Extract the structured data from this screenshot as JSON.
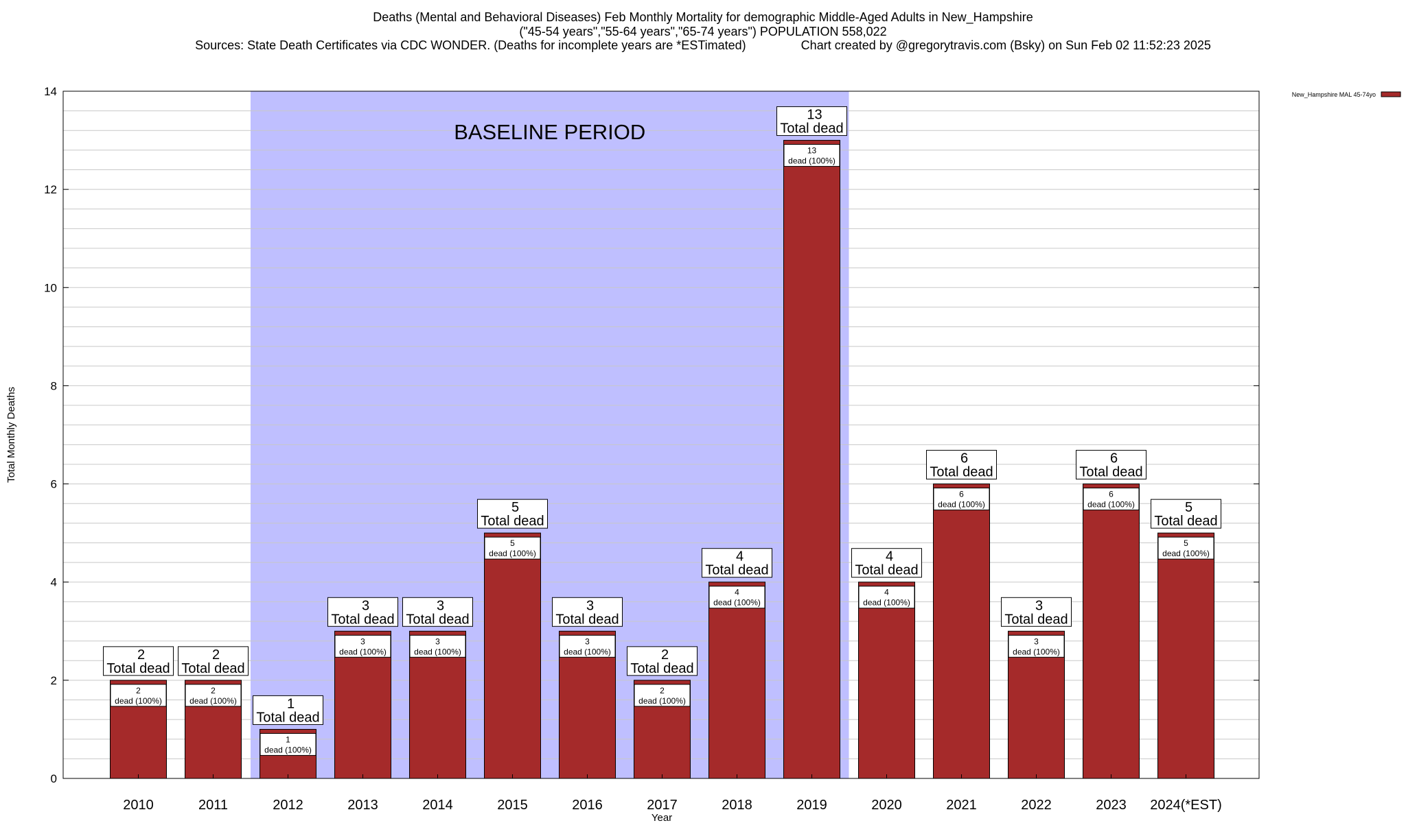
{
  "title_lines": [
    "Deaths (Mental and Behavioral Diseases) Feb Monthly Mortality for demographic Middle-Aged Adults in New_Hampshire",
    "(\"45-54 years\",\"55-64 years\",\"65-74 years\") POPULATION 558,022",
    "Sources: State Death Certificates via CDC WONDER. (Deaths for incomplete years are *ESTimated)                Chart created by @gregorytravis.com (Bsky) on Sun Feb 02 11:52:23 2025"
  ],
  "colors": {
    "bar": "#a52a2a",
    "baseline_shade": "#bfbfff",
    "grid": "#c8c8c8"
  },
  "chart_data": {
    "type": "bar",
    "xlabel": "Year",
    "ylabel": "Total Monthly Deaths",
    "ylim": [
      0,
      14
    ],
    "y_ticks": [
      0,
      2,
      4,
      6,
      8,
      10,
      12,
      14
    ],
    "grid": true,
    "legend_position": "top-right",
    "categories": [
      "2010",
      "2011",
      "2012",
      "2013",
      "2014",
      "2015",
      "2016",
      "2017",
      "2018",
      "2019",
      "2020",
      "2021",
      "2022",
      "2023",
      "2024(*EST)"
    ],
    "series": [
      {
        "name": "New_Hampshire MAL 45-74yo",
        "values": [
          2,
          2,
          1,
          3,
          3,
          5,
          3,
          2,
          4,
          13,
          4,
          6,
          3,
          6,
          5
        ]
      }
    ],
    "baseline": {
      "label": "BASELINE PERIOD",
      "start": "2012",
      "end": "2019"
    },
    "total_label": "Total dead",
    "inner_label_suffix": "dead (100%)"
  }
}
